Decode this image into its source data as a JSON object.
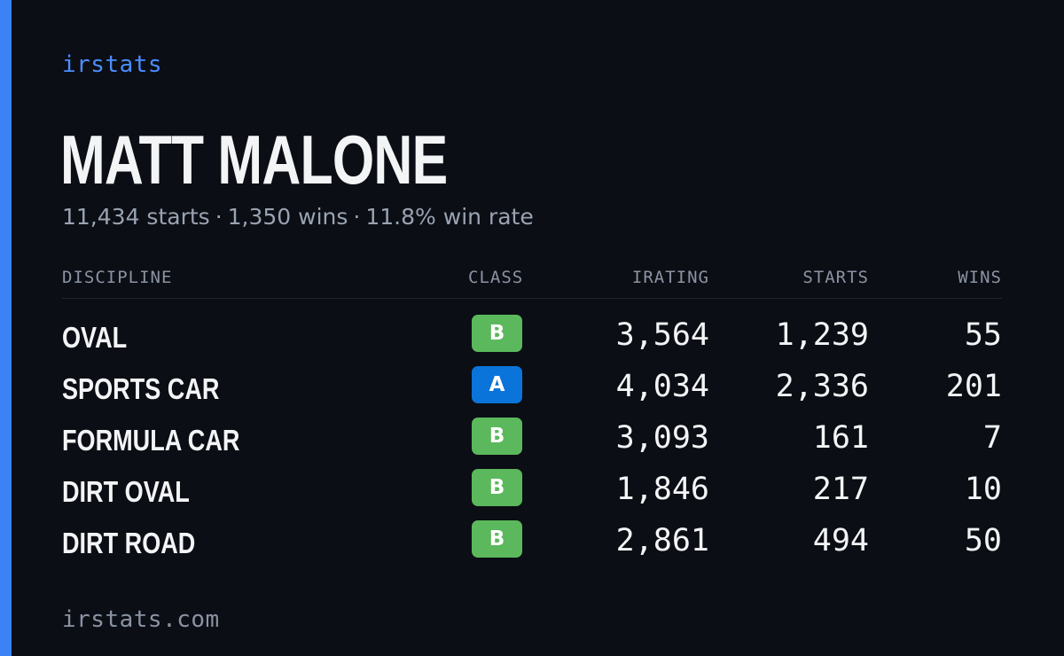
{
  "brand": "irstats",
  "accent_color": "#3b82f6",
  "driver": {
    "name": "MATT MALONE",
    "starts": "11,434 starts",
    "wins": "1,350 wins",
    "win_rate": "11.8% win rate",
    "separator": "·"
  },
  "table": {
    "headers": {
      "discipline": "DISCIPLINE",
      "class": "CLASS",
      "irating": "IRATING",
      "starts": "STARTS",
      "wins": "WINS"
    },
    "rows": [
      {
        "discipline": "OVAL",
        "class": "B",
        "class_color": "#5cb85c",
        "irating": "3,564",
        "starts": "1,239",
        "wins": "55"
      },
      {
        "discipline": "SPORTS CAR",
        "class": "A",
        "class_color": "#0b74da",
        "irating": "4,034",
        "starts": "2,336",
        "wins": "201"
      },
      {
        "discipline": "FORMULA CAR",
        "class": "B",
        "class_color": "#5cb85c",
        "irating": "3,093",
        "starts": "161",
        "wins": "7"
      },
      {
        "discipline": "DIRT OVAL",
        "class": "B",
        "class_color": "#5cb85c",
        "irating": "1,846",
        "starts": "217",
        "wins": "10"
      },
      {
        "discipline": "DIRT ROAD",
        "class": "B",
        "class_color": "#5cb85c",
        "irating": "2,861",
        "starts": "494",
        "wins": "50"
      }
    ]
  },
  "footer": "irstats.com"
}
